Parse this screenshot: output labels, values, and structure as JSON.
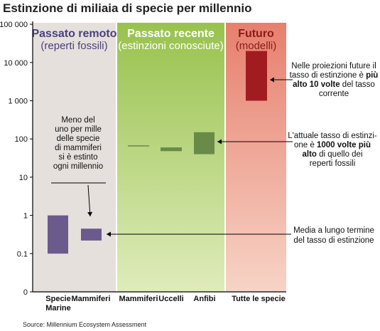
{
  "chart_data": {
    "type": "range-bar",
    "title": "Estinzione di miliaia di specie per millennio",
    "scale": "log",
    "ylim": [
      0,
      100000
    ],
    "yticks": [
      {
        "value": 100000,
        "label": "100 000"
      },
      {
        "value": 10000,
        "label": "10 000"
      },
      {
        "value": 1000,
        "label": "1 000"
      },
      {
        "value": 100,
        "label": "100"
      },
      {
        "value": 10,
        "label": "10"
      },
      {
        "value": 1,
        "label": "1"
      },
      {
        "value": 0.1,
        "label": "0.1"
      },
      {
        "value": 0,
        "label": "0"
      }
    ],
    "panels": [
      {
        "title": "Passato remoto",
        "subtitle": "(reperti fossili)",
        "background": "#e5e0dc",
        "title_color": "#4a3f7e"
      },
      {
        "title": "Passato recente",
        "subtitle": "(estinzioni conosciute)",
        "background": "#bed97a",
        "title_color": "#ffffff"
      },
      {
        "title": "Futuro",
        "subtitle": "(modelli)",
        "background": "#ef9f8c",
        "title_color": "#8b1a1a"
      }
    ],
    "bars": [
      {
        "panel": 0,
        "label": "Specie Marine",
        "label_lines": [
          "Specie",
          "Marine"
        ],
        "low": 0.1,
        "high": 1,
        "color": "#6b5a8c"
      },
      {
        "panel": 0,
        "label": "Mammiferi",
        "label_lines": [
          "Mammiferi"
        ],
        "low": 0.22,
        "high": 0.45,
        "color": "#6b5a8c"
      },
      {
        "panel": 1,
        "label": "Mammiferi",
        "label_lines": [
          "Mammiferi"
        ],
        "low": 66,
        "high": 68,
        "color": "#6a8a4a"
      },
      {
        "panel": 1,
        "label": "Uccelli",
        "label_lines": [
          "Uccelli"
        ],
        "low": 48,
        "high": 60,
        "color": "#6a8a4a"
      },
      {
        "panel": 1,
        "label": "Anfibi",
        "label_lines": [
          "Anfibi"
        ],
        "low": 40,
        "high": 150,
        "color": "#6a8a4a"
      },
      {
        "panel": 2,
        "label": "Tutte le specie",
        "label_lines": [
          "Tutte le specie"
        ],
        "low": 1000,
        "high": 20000,
        "color": "#a11c20"
      }
    ],
    "annotations": [
      {
        "lines": [
          [
            "Nelle proiezioni future il",
            ""
          ],
          [
            "tasso di estinzione è ",
            "più"
          ],
          [
            "alto 10 volte",
            " del tasso"
          ],
          [
            "corrente",
            ""
          ]
        ]
      },
      {
        "lines": [
          [
            "L'attuale tasso di estinzi-",
            ""
          ],
          [
            "one è ",
            "1000 volte più"
          ],
          [
            "alto",
            " di quello dei"
          ],
          [
            "reperti fossili",
            ""
          ]
        ]
      },
      {
        "lines": [
          [
            "Media a lungo termine",
            ""
          ],
          [
            "del tasso di estinzione",
            ""
          ]
        ]
      },
      {
        "lines": [
          [
            "Meno del",
            ""
          ],
          [
            "uno per mille",
            ""
          ],
          [
            "delle specie",
            ""
          ],
          [
            "di mammiferi",
            ""
          ],
          [
            "si è estinto",
            ""
          ],
          [
            "ogni millennio",
            ""
          ]
        ]
      }
    ],
    "source": "Source: Millennium Ecosystem Assessment"
  }
}
